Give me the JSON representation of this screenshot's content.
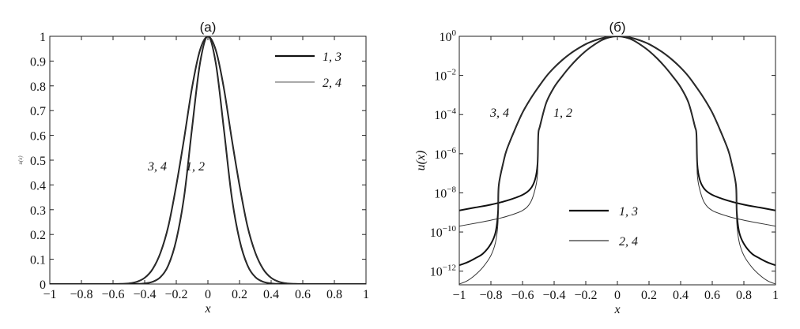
{
  "chart_data": [
    {
      "type": "line",
      "title": "(a)",
      "xlabel": "x",
      "ylabel": "u(x)",
      "xlim": [
        -1,
        1
      ],
      "ylim": [
        0,
        1
      ],
      "yscale": "linear",
      "grid": false,
      "xticks": [
        "−1",
        "−0.8",
        "−0.6",
        "−0.4",
        "−0.2",
        "0",
        "0.2",
        "0.4",
        "0.6",
        "0.8",
        "1"
      ],
      "yticks": [
        "0",
        "0.1",
        "0.2",
        "0.3",
        "0.4",
        "0.5",
        "0.6",
        "0.7",
        "0.8",
        "0.9",
        "1"
      ],
      "legend": {
        "placement": "top-right",
        "entries": [
          {
            "label": "1, 3",
            "style": "thick"
          },
          {
            "label": "2, 4",
            "style": "thin"
          }
        ]
      },
      "annotations": [
        "3, 4",
        "1, 2"
      ],
      "series": [
        {
          "id": "1",
          "style": "thick",
          "x": [
            -1,
            -0.9,
            -0.8,
            -0.7,
            -0.6,
            -0.55,
            -0.52,
            -0.505,
            -0.5,
            -0.49,
            -0.45,
            -0.4,
            -0.35,
            -0.3,
            -0.25,
            -0.2,
            -0.15,
            -0.1,
            -0.05,
            0,
            0.05,
            0.1,
            0.15,
            0.2,
            0.25,
            0.3,
            0.35,
            0.4,
            0.45,
            0.49,
            0.5,
            0.505,
            0.52,
            0.55,
            0.6,
            0.7,
            0.8,
            0.9,
            1
          ],
          "u": [
            1.26e-09,
            1.78e-09,
            2.5e-09,
            4e-09,
            7.9e-09,
            1.6e-08,
            5e-08,
            3e-07,
            1e-05,
            2.5e-05,
            0.0004,
            0.0025,
            0.0089,
            0.028,
            0.076,
            0.178,
            0.355,
            0.631,
            0.891,
            1,
            0.891,
            0.631,
            0.355,
            0.178,
            0.076,
            0.028,
            0.0089,
            0.0025,
            0.0004,
            2.5e-05,
            1e-05,
            3e-07,
            5e-08,
            1.6e-08,
            7.9e-09,
            4e-09,
            2.5e-09,
            1.78e-09,
            1.26e-09
          ]
        },
        {
          "id": "2",
          "style": "thin",
          "x": [
            -1,
            -0.9,
            -0.8,
            -0.7,
            -0.6,
            -0.55,
            -0.52,
            -0.505,
            -0.5,
            -0.49,
            -0.45,
            -0.4,
            -0.35,
            -0.3,
            -0.25,
            -0.2,
            -0.15,
            -0.1,
            -0.05,
            0,
            0.05,
            0.1,
            0.15,
            0.2,
            0.25,
            0.3,
            0.35,
            0.4,
            0.45,
            0.49,
            0.5,
            0.505,
            0.52,
            0.55,
            0.6,
            0.7,
            0.8,
            0.9,
            1
          ],
          "u": [
            2e-10,
            2.8e-10,
            4e-10,
            6.3e-10,
            1.26e-09,
            3.2e-09,
            1.6e-08,
            1e-07,
            1e-05,
            2.5e-05,
            0.0004,
            0.0025,
            0.0089,
            0.028,
            0.076,
            0.178,
            0.355,
            0.631,
            0.891,
            1,
            0.891,
            0.631,
            0.355,
            0.178,
            0.076,
            0.028,
            0.0089,
            0.0025,
            0.0004,
            2.5e-05,
            1e-05,
            1e-07,
            1.6e-08,
            3.2e-09,
            1.26e-09,
            6.3e-10,
            4e-10,
            2.8e-10,
            2e-10
          ]
        },
        {
          "id": "3",
          "style": "thick",
          "x": [
            -1,
            -0.95,
            -0.9,
            -0.85,
            -0.8,
            -0.77,
            -0.755,
            -0.75,
            -0.72,
            -0.7,
            -0.65,
            -0.6,
            -0.55,
            -0.5,
            -0.45,
            -0.4,
            -0.35,
            -0.3,
            -0.25,
            -0.2,
            -0.15,
            -0.1,
            -0.05,
            0,
            0.05,
            0.1,
            0.15,
            0.2,
            0.25,
            0.3,
            0.35,
            0.4,
            0.45,
            0.5,
            0.55,
            0.6,
            0.65,
            0.7,
            0.72,
            0.75,
            0.755,
            0.77,
            0.8,
            0.85,
            0.9,
            0.95,
            1
          ],
          "u": [
            2e-12,
            2.8e-12,
            4.5e-12,
            7.9e-12,
            2.5e-11,
            1e-10,
            1e-09,
            2.5e-08,
            4e-07,
            1.6e-06,
            1.6e-05,
            0.000126,
            0.00063,
            0.0025,
            0.0089,
            0.025,
            0.06,
            0.126,
            0.234,
            0.398,
            0.589,
            0.794,
            0.944,
            1,
            0.944,
            0.794,
            0.589,
            0.398,
            0.234,
            0.126,
            0.06,
            0.025,
            0.0089,
            0.0025,
            0.00063,
            0.000126,
            1.6e-05,
            1.6e-06,
            4e-07,
            2.5e-08,
            1e-09,
            1e-10,
            2.5e-11,
            7.9e-12,
            4.5e-12,
            2.8e-12,
            2e-12
          ]
        },
        {
          "id": "4",
          "style": "thin",
          "x": [
            -1,
            -0.95,
            -0.9,
            -0.85,
            -0.8,
            -0.77,
            -0.755,
            -0.75,
            -0.72,
            -0.7,
            -0.65,
            -0.6,
            -0.55,
            -0.5,
            -0.45,
            -0.4,
            -0.35,
            -0.3,
            -0.25,
            -0.2,
            -0.15,
            -0.1,
            -0.05,
            0,
            0.05,
            0.1,
            0.15,
            0.2,
            0.25,
            0.3,
            0.35,
            0.4,
            0.45,
            0.5,
            0.55,
            0.6,
            0.65,
            0.7,
            0.72,
            0.75,
            0.755,
            0.77,
            0.8,
            0.85,
            0.9,
            0.95,
            1
          ],
          "u": [
            2.2e-13,
            3.2e-13,
            6.3e-13,
            1.6e-12,
            6.3e-12,
            3.2e-11,
            3.2e-10,
            2.5e-08,
            4e-07,
            1.6e-06,
            1.6e-05,
            0.000126,
            0.00063,
            0.0025,
            0.0089,
            0.025,
            0.06,
            0.126,
            0.234,
            0.398,
            0.589,
            0.794,
            0.944,
            1,
            0.944,
            0.794,
            0.589,
            0.398,
            0.234,
            0.126,
            0.06,
            0.025,
            0.0089,
            0.0025,
            0.00063,
            0.000126,
            1.6e-05,
            1.6e-06,
            4e-07,
            2.5e-08,
            3.2e-10,
            3.2e-11,
            6.3e-12,
            1.6e-12,
            6.3e-13,
            3.2e-13,
            2.2e-13
          ]
        }
      ]
    },
    {
      "type": "line",
      "title": "(б)",
      "xlabel": "x",
      "ylabel": "u(x)",
      "xlim": [
        -1,
        1
      ],
      "ylim": [
        2e-13,
        1
      ],
      "yscale": "log",
      "grid": false,
      "xticks": [
        "−1",
        "−0.8",
        "−0.6",
        "−0.4",
        "−0.2",
        "0",
        "0.2",
        "0.4",
        "0.6",
        "0.8",
        "1"
      ],
      "yticks": [
        {
          "base": "10",
          "exp": "0"
        },
        {
          "base": "10",
          "exp": "−2"
        },
        {
          "base": "10",
          "exp": "−4"
        },
        {
          "base": "10",
          "exp": "−6"
        },
        {
          "base": "10",
          "exp": "−8"
        },
        {
          "base": "10",
          "exp": "−10"
        },
        {
          "base": "10",
          "exp": "−12"
        }
      ],
      "legend": {
        "placement": "center-bottom",
        "entries": [
          {
            "label": "1, 3",
            "style": "thick"
          },
          {
            "label": "2, 4",
            "style": "thin"
          }
        ]
      },
      "annotations": [
        "3, 4",
        "1, 2"
      ],
      "series": [
        {
          "id": "1",
          "style": "thick",
          "x": [
            -1,
            -0.9,
            -0.8,
            -0.7,
            -0.6,
            -0.55,
            -0.52,
            -0.505,
            -0.5,
            -0.49,
            -0.45,
            -0.4,
            -0.35,
            -0.3,
            -0.25,
            -0.2,
            -0.15,
            -0.1,
            -0.05,
            0,
            0.05,
            0.1,
            0.15,
            0.2,
            0.25,
            0.3,
            0.35,
            0.4,
            0.45,
            0.49,
            0.5,
            0.505,
            0.52,
            0.55,
            0.6,
            0.7,
            0.8,
            0.9,
            1
          ],
          "u": [
            1.26e-09,
            1.78e-09,
            2.5e-09,
            4e-09,
            7.9e-09,
            1.6e-08,
            5e-08,
            3e-07,
            1e-05,
            2.5e-05,
            0.0004,
            0.0025,
            0.0089,
            0.028,
            0.076,
            0.178,
            0.355,
            0.631,
            0.891,
            1,
            0.891,
            0.631,
            0.355,
            0.178,
            0.076,
            0.028,
            0.0089,
            0.0025,
            0.0004,
            2.5e-05,
            1e-05,
            3e-07,
            5e-08,
            1.6e-08,
            7.9e-09,
            4e-09,
            2.5e-09,
            1.78e-09,
            1.26e-09
          ]
        },
        {
          "id": "2",
          "style": "thin",
          "x": [
            -1,
            -0.9,
            -0.8,
            -0.7,
            -0.6,
            -0.55,
            -0.52,
            -0.505,
            -0.5,
            -0.49,
            -0.45,
            -0.4,
            -0.35,
            -0.3,
            -0.25,
            -0.2,
            -0.15,
            -0.1,
            -0.05,
            0,
            0.05,
            0.1,
            0.15,
            0.2,
            0.25,
            0.3,
            0.35,
            0.4,
            0.45,
            0.49,
            0.5,
            0.505,
            0.52,
            0.55,
            0.6,
            0.7,
            0.8,
            0.9,
            1
          ],
          "u": [
            2e-10,
            2.8e-10,
            4e-10,
            6.3e-10,
            1.26e-09,
            3.2e-09,
            1.6e-08,
            1e-07,
            1e-05,
            2.5e-05,
            0.0004,
            0.0025,
            0.0089,
            0.028,
            0.076,
            0.178,
            0.355,
            0.631,
            0.891,
            1,
            0.891,
            0.631,
            0.355,
            0.178,
            0.076,
            0.028,
            0.0089,
            0.0025,
            0.0004,
            2.5e-05,
            1e-05,
            1e-07,
            1.6e-08,
            3.2e-09,
            1.26e-09,
            6.3e-10,
            4e-10,
            2.8e-10,
            2e-10
          ]
        },
        {
          "id": "3",
          "style": "thick",
          "x": [
            -1,
            -0.95,
            -0.9,
            -0.85,
            -0.8,
            -0.77,
            -0.755,
            -0.75,
            -0.72,
            -0.7,
            -0.65,
            -0.6,
            -0.55,
            -0.5,
            -0.45,
            -0.4,
            -0.35,
            -0.3,
            -0.25,
            -0.2,
            -0.15,
            -0.1,
            -0.05,
            0,
            0.05,
            0.1,
            0.15,
            0.2,
            0.25,
            0.3,
            0.35,
            0.4,
            0.45,
            0.5,
            0.55,
            0.6,
            0.65,
            0.7,
            0.72,
            0.75,
            0.755,
            0.77,
            0.8,
            0.85,
            0.9,
            0.95,
            1
          ],
          "u": [
            2e-12,
            2.8e-12,
            4.5e-12,
            7.9e-12,
            2.5e-11,
            1e-10,
            1e-09,
            2.5e-08,
            4e-07,
            1.6e-06,
            1.6e-05,
            0.000126,
            0.00063,
            0.0025,
            0.0089,
            0.025,
            0.06,
            0.126,
            0.234,
            0.398,
            0.589,
            0.794,
            0.944,
            1,
            0.944,
            0.794,
            0.589,
            0.398,
            0.234,
            0.126,
            0.06,
            0.025,
            0.0089,
            0.0025,
            0.00063,
            0.000126,
            1.6e-05,
            1.6e-06,
            4e-07,
            2.5e-08,
            1e-09,
            1e-10,
            2.5e-11,
            7.9e-12,
            4.5e-12,
            2.8e-12,
            2e-12
          ]
        },
        {
          "id": "4",
          "style": "thin",
          "x": [
            -1,
            -0.95,
            -0.9,
            -0.85,
            -0.8,
            -0.77,
            -0.755,
            -0.75,
            -0.72,
            -0.7,
            -0.65,
            -0.6,
            -0.55,
            -0.5,
            -0.45,
            -0.4,
            -0.35,
            -0.3,
            -0.25,
            -0.2,
            -0.15,
            -0.1,
            -0.05,
            0,
            0.05,
            0.1,
            0.15,
            0.2,
            0.25,
            0.3,
            0.35,
            0.4,
            0.45,
            0.5,
            0.55,
            0.6,
            0.65,
            0.7,
            0.72,
            0.75,
            0.755,
            0.77,
            0.8,
            0.85,
            0.9,
            0.95,
            1
          ],
          "u": [
            2.2e-13,
            3.2e-13,
            6.3e-13,
            1.6e-12,
            6.3e-12,
            3.2e-11,
            3.2e-10,
            2.5e-08,
            4e-07,
            1.6e-06,
            1.6e-05,
            0.000126,
            0.00063,
            0.0025,
            0.0089,
            0.025,
            0.06,
            0.126,
            0.234,
            0.398,
            0.589,
            0.794,
            0.944,
            1,
            0.944,
            0.794,
            0.589,
            0.398,
            0.234,
            0.126,
            0.06,
            0.025,
            0.0089,
            0.0025,
            0.00063,
            0.000126,
            1.6e-05,
            1.6e-06,
            4e-07,
            2.5e-08,
            3.2e-10,
            3.2e-11,
            6.3e-12,
            1.6e-12,
            6.3e-13,
            3.2e-13,
            2.2e-13
          ]
        }
      ]
    }
  ]
}
